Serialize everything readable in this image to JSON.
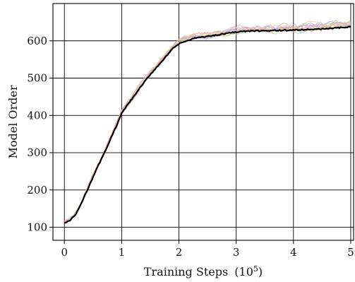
{
  "chart_data": {
    "type": "line",
    "title": "",
    "xlabel": "Training Steps",
    "xlabel_sup_base": "(10",
    "xlabel_sup_exp": "5",
    "xlabel_sup_close": ")",
    "ylabel": "Model Order",
    "xlim": [
      -0.2,
      5.05
    ],
    "ylim": [
      65,
      700
    ],
    "xticks": [
      0,
      1,
      2,
      3,
      4,
      5
    ],
    "yticks": [
      100,
      200,
      300,
      400,
      500,
      600
    ],
    "grid": true,
    "legend": "none",
    "mean_color": "#000000",
    "run_colors": [
      "#8fd18f",
      "#f5b76b",
      "#c9a0dc",
      "#9ec5e8",
      "#f2a3a3",
      "#e6c36a",
      "#b5b5b5",
      "#e39ac4",
      "#a8a0e0",
      "#f0c88a"
    ],
    "mean": {
      "x": [
        0,
        0.1,
        0.2,
        0.3,
        0.4,
        0.5,
        0.6,
        0.7,
        0.8,
        0.9,
        1.0,
        1.1,
        1.2,
        1.3,
        1.4,
        1.5,
        1.6,
        1.7,
        1.8,
        1.9,
        2.0,
        2.1,
        2.2,
        2.3,
        2.4,
        2.5,
        2.6,
        2.7,
        2.8,
        2.9,
        3.0,
        3.2,
        3.4,
        3.6,
        3.8,
        4.0,
        4.2,
        4.4,
        4.6,
        4.8,
        5.0
      ],
      "y": [
        112,
        118,
        135,
        165,
        200,
        235,
        268,
        300,
        335,
        368,
        405,
        428,
        448,
        470,
        490,
        510,
        527,
        545,
        562,
        580,
        592,
        598,
        603,
        608,
        610,
        612,
        614,
        617,
        619,
        622,
        624,
        626,
        627,
        627,
        628,
        629,
        630,
        631,
        633,
        635,
        637
      ]
    },
    "runs_spread_by_x": {
      "x": [
        0,
        0.5,
        1.0,
        1.5,
        2.0,
        2.5,
        3.0,
        3.5,
        4.0,
        4.5,
        5.0
      ],
      "spread": [
        8,
        10,
        12,
        14,
        18,
        16,
        18,
        18,
        20,
        20,
        22
      ]
    }
  }
}
